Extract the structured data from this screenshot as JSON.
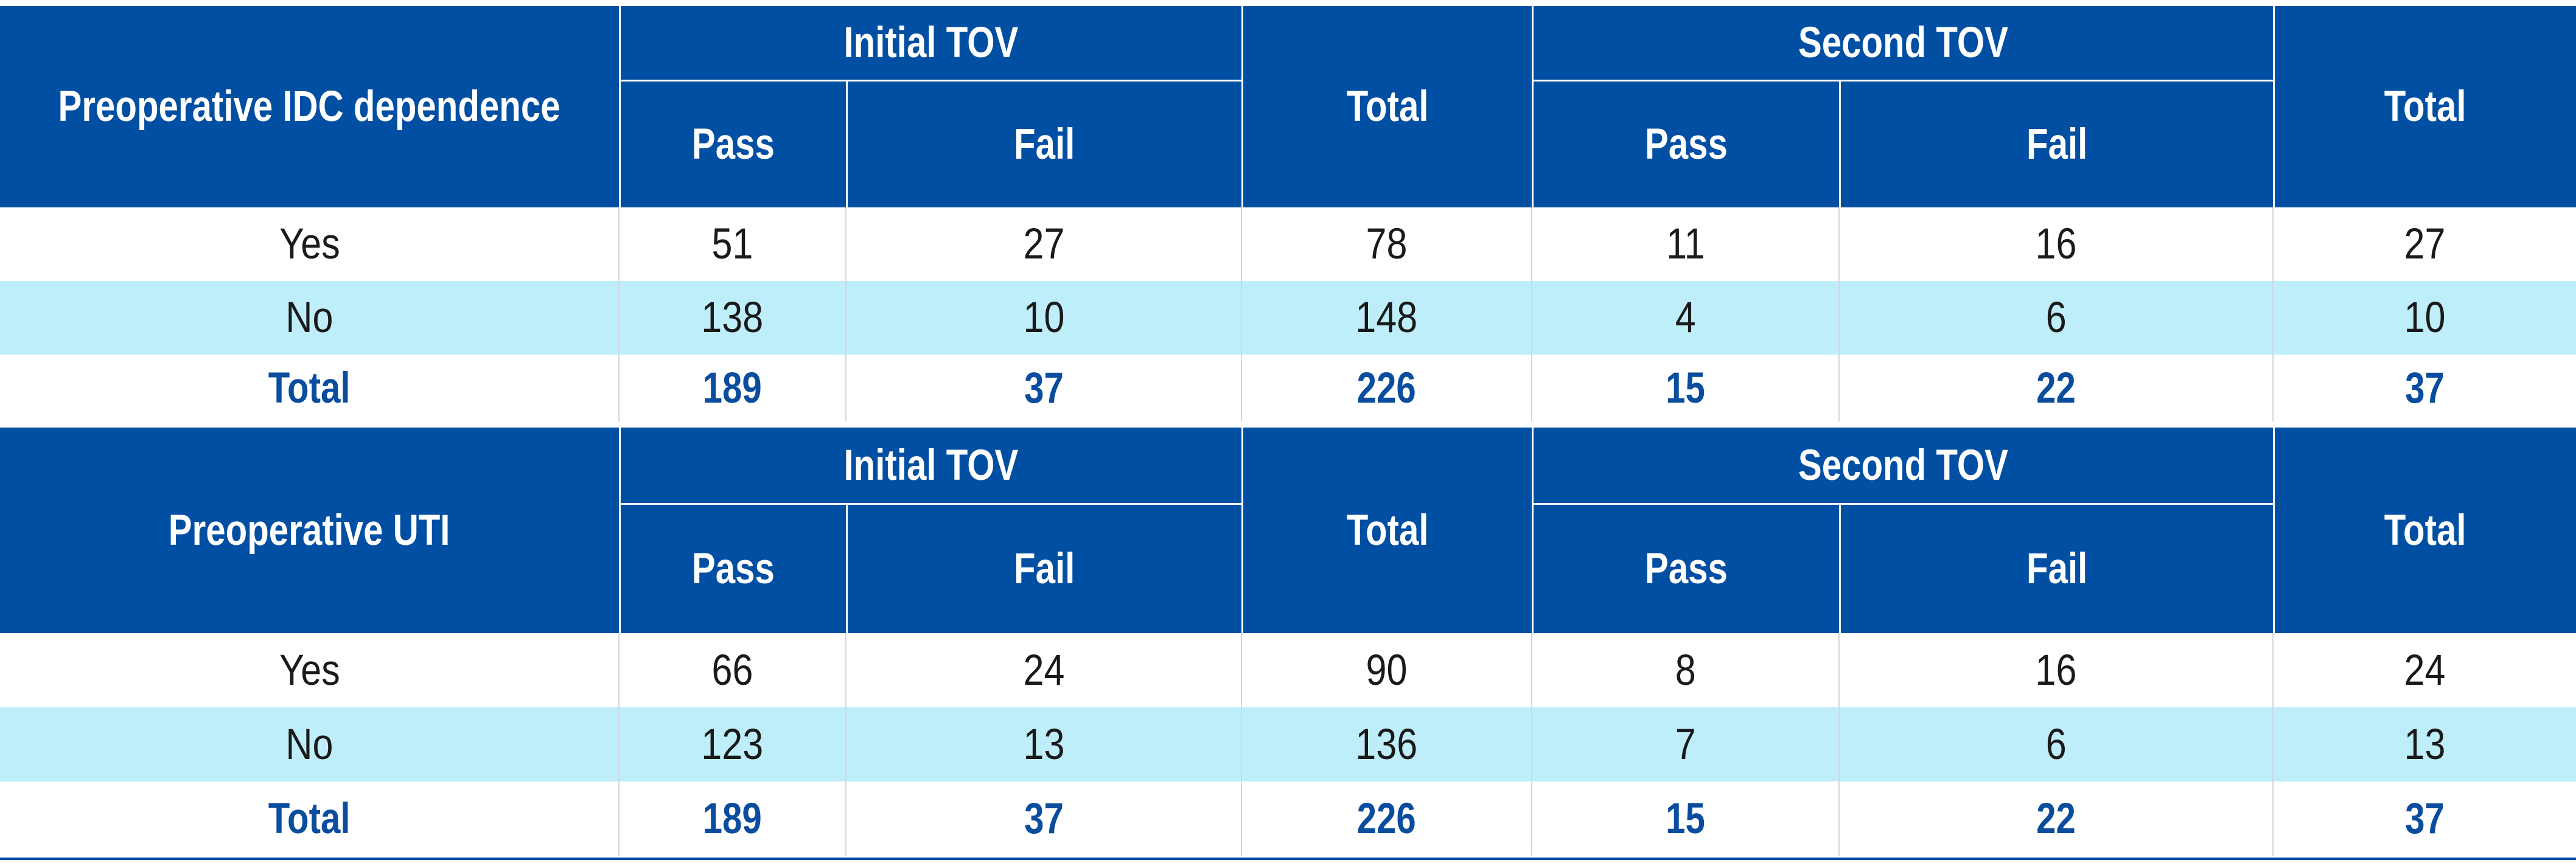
{
  "colors": {
    "header": "#004fa2",
    "stripe": "#bdeefa",
    "total_text": "#0a4c9d"
  },
  "tables": [
    {
      "row_header": "Preoperative IDC dependence",
      "group1": "Initial TOV",
      "group2": "Second TOV",
      "pass_label": "Pass",
      "fail_label": "Fail",
      "total_label": "Total",
      "rows": [
        {
          "label": "Yes",
          "values": [
            "51",
            "27",
            "78",
            "11",
            "16",
            "27"
          ]
        },
        {
          "label": "No",
          "values": [
            "138",
            "10",
            "148",
            "4",
            "6",
            "10"
          ]
        },
        {
          "label": "Total",
          "values": [
            "189",
            "37",
            "226",
            "15",
            "22",
            "37"
          ]
        }
      ]
    },
    {
      "row_header": "Preoperative UTI",
      "group1": "Initial TOV",
      "group2": "Second TOV",
      "pass_label": "Pass",
      "fail_label": "Fail",
      "total_label": "Total",
      "rows": [
        {
          "label": "Yes",
          "values": [
            "66",
            "24",
            "90",
            "8",
            "16",
            "24"
          ]
        },
        {
          "label": "No",
          "values": [
            "123",
            "13",
            "136",
            "7",
            "6",
            "13"
          ]
        },
        {
          "label": "Total",
          "values": [
            "189",
            "37",
            "226",
            "15",
            "22",
            "37"
          ]
        }
      ]
    }
  ]
}
